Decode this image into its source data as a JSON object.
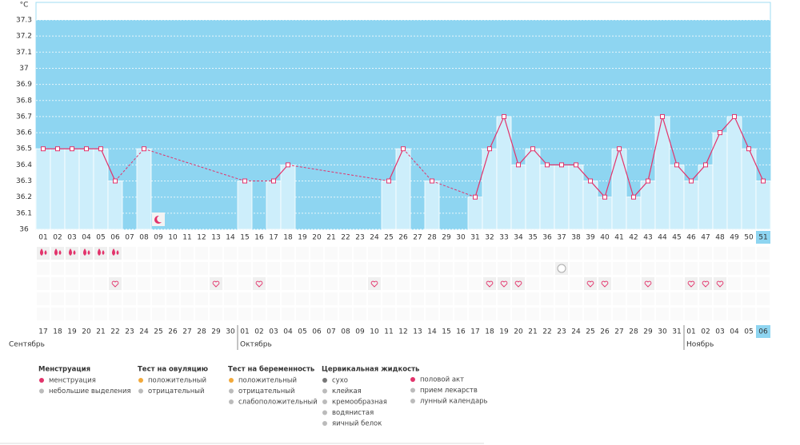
{
  "chart_data": {
    "type": "line",
    "y_label": "°C",
    "categories": [
      "01",
      "02",
      "03",
      "04",
      "05",
      "06",
      "07",
      "08",
      "09",
      "10",
      "11",
      "12",
      "13",
      "14",
      "15",
      "16",
      "17",
      "18",
      "19",
      "20",
      "21",
      "22",
      "23",
      "24",
      "25",
      "26",
      "27",
      "28",
      "29",
      "30",
      "31",
      "32",
      "33",
      "34",
      "35",
      "36",
      "37",
      "38",
      "39",
      "40",
      "41",
      "42",
      "43",
      "44",
      "45",
      "46",
      "47",
      "48",
      "49",
      "50",
      "51"
    ],
    "values": [
      36.5,
      36.5,
      36.5,
      36.5,
      36.5,
      36.3,
      null,
      36.5,
      null,
      null,
      null,
      null,
      null,
      null,
      36.3,
      null,
      36.3,
      36.4,
      null,
      null,
      null,
      null,
      null,
      null,
      36.3,
      36.5,
      null,
      36.3,
      null,
      null,
      36.2,
      36.5,
      36.7,
      36.4,
      36.5,
      36.4,
      36.4,
      36.4,
      36.3,
      36.2,
      36.5,
      36.2,
      36.3,
      36.7,
      36.4,
      36.3,
      36.4,
      36.6,
      36.7,
      36.5,
      36.3
    ],
    "ylim": [
      36,
      37.3
    ],
    "yticks": [
      36,
      36.1,
      36.2,
      36.3,
      36.4,
      36.5,
      36.6,
      36.7,
      36.8,
      36.9,
      37,
      37.1,
      37.2,
      37.3
    ],
    "grid": true,
    "color": "#e2336b",
    "bar_color": "#cdeefb",
    "background_color": "#8ed5f1",
    "highlight_index": 50,
    "calendar_dates": [
      "17",
      "18",
      "19",
      "20",
      "21",
      "22",
      "23",
      "24",
      "25",
      "26",
      "27",
      "28",
      "29",
      "30",
      "01",
      "02",
      "03",
      "04",
      "05",
      "06",
      "07",
      "08",
      "09",
      "10",
      "11",
      "12",
      "13",
      "14",
      "15",
      "16",
      "17",
      "18",
      "19",
      "20",
      "21",
      "22",
      "23",
      "24",
      "25",
      "26",
      "27",
      "28",
      "29",
      "30",
      "31",
      "01",
      "02",
      "03",
      "04",
      "05",
      "06"
    ],
    "date_weekend": [
      false,
      false,
      false,
      false,
      true,
      true,
      false,
      false,
      false,
      false,
      false,
      true,
      true,
      false,
      false,
      false,
      false,
      false,
      true,
      true,
      false,
      false,
      false,
      false,
      false,
      true,
      true,
      false,
      false,
      false,
      false,
      false,
      true,
      true,
      false,
      false,
      false,
      false,
      false,
      true,
      true,
      false,
      false,
      false,
      false,
      false,
      true,
      true,
      false,
      false,
      false
    ],
    "months": [
      "Сентябрь",
      "Октябрь",
      "Ноябрь"
    ],
    "events": {
      "menstruation": [
        "01",
        "02",
        "03",
        "04",
        "05",
        "06"
      ],
      "pregnancy_test_negative": [
        "37"
      ],
      "intercourse": [
        "06",
        "13",
        "16",
        "24",
        "32",
        "33",
        "34",
        "39",
        "40",
        "43",
        "46",
        "47",
        "48"
      ],
      "lunar": [
        "09"
      ]
    },
    "legend_groups": [
      {
        "title": "Менструация",
        "items": [
          "менструация",
          "небольшие выделения"
        ]
      },
      {
        "title": "Тест на овуляцию",
        "items": [
          "положительный",
          "отрицательный"
        ]
      },
      {
        "title": "Тест на беременность",
        "items": [
          "положительный",
          "отрицательный",
          "слабоположительный"
        ]
      },
      {
        "title": "Цервикальная жидкость",
        "items": [
          "сухо",
          "клейкая",
          "кремообразная",
          "водянистая",
          "яичный белок"
        ]
      },
      {
        "items": [
          "половой акт",
          "прием лекарств",
          "лунный календарь"
        ]
      }
    ]
  }
}
